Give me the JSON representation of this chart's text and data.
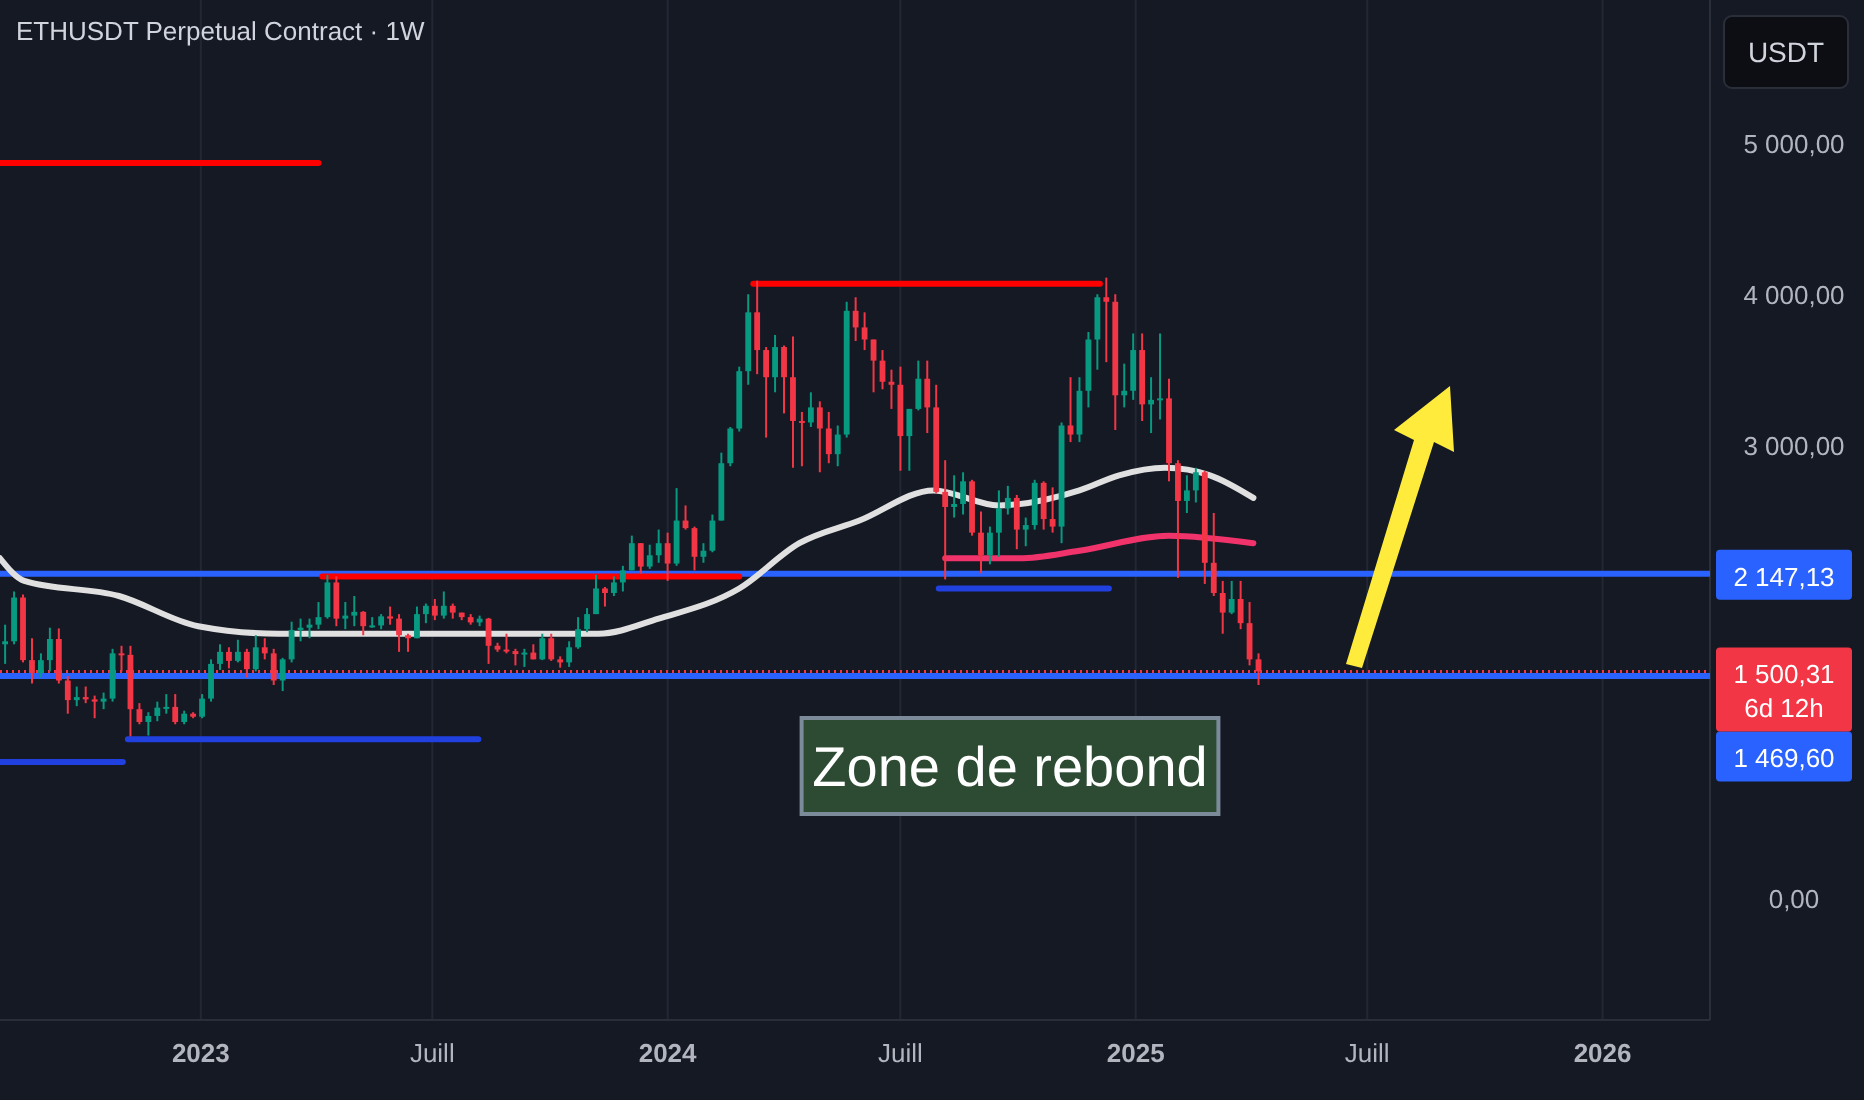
{
  "chart_data": {
    "type": "candlestick",
    "title": "ETHUSDT Perpetual Contract · 1W",
    "ylabel": "USDT",
    "xlim": [
      "2022-07-28",
      "2026-03-26"
    ],
    "ylim": [
      -810,
      5950
    ],
    "xticks": [
      {
        "value": "2023-01-01",
        "label": "2023"
      },
      {
        "value": "2023-07-01",
        "label": "Juill"
      },
      {
        "value": "2024-01-01",
        "label": "2024"
      },
      {
        "value": "2024-07-01",
        "label": "Juill"
      },
      {
        "value": "2025-01-01",
        "label": "2025"
      },
      {
        "value": "2025-07-01",
        "label": "Juill"
      },
      {
        "value": "2026-01-01",
        "label": "2026"
      }
    ],
    "yticks": [
      {
        "value": 0,
        "label": "0,00"
      },
      {
        "value": 3000,
        "label": "3 000,00"
      },
      {
        "value": 4000,
        "label": "4 000,00"
      },
      {
        "value": 5000,
        "label": "5 000,00"
      }
    ],
    "grid": "x",
    "x": [
      "2022-08-01",
      "2022-08-08",
      "2022-08-15",
      "2022-08-22",
      "2022-08-29",
      "2022-09-05",
      "2022-09-12",
      "2022-09-19",
      "2022-09-26",
      "2022-10-03",
      "2022-10-10",
      "2022-10-17",
      "2022-10-24",
      "2022-10-31",
      "2022-11-07",
      "2022-11-14",
      "2022-11-21",
      "2022-11-28",
      "2022-12-05",
      "2022-12-12",
      "2022-12-19",
      "2022-12-26",
      "2023-01-02",
      "2023-01-09",
      "2023-01-16",
      "2023-01-23",
      "2023-01-30",
      "2023-02-06",
      "2023-02-13",
      "2023-02-20",
      "2023-02-27",
      "2023-03-06",
      "2023-03-13",
      "2023-03-20",
      "2023-03-27",
      "2023-04-03",
      "2023-04-10",
      "2023-04-17",
      "2023-04-24",
      "2023-05-01",
      "2023-05-08",
      "2023-05-15",
      "2023-05-22",
      "2023-05-29",
      "2023-06-05",
      "2023-06-12",
      "2023-06-19",
      "2023-06-26",
      "2023-07-03",
      "2023-07-10",
      "2023-07-17",
      "2023-07-24",
      "2023-07-31",
      "2023-08-07",
      "2023-08-14",
      "2023-08-21",
      "2023-08-28",
      "2023-09-04",
      "2023-09-11",
      "2023-09-18",
      "2023-09-25",
      "2023-10-02",
      "2023-10-09",
      "2023-10-16",
      "2023-10-23",
      "2023-10-30",
      "2023-11-06",
      "2023-11-13",
      "2023-11-20",
      "2023-11-27",
      "2023-12-04",
      "2023-12-11",
      "2023-12-18",
      "2023-12-25",
      "2024-01-01",
      "2024-01-08",
      "2024-01-15",
      "2024-01-22",
      "2024-01-29",
      "2024-02-05",
      "2024-02-12",
      "2024-02-19",
      "2024-02-26",
      "2024-03-04",
      "2024-03-11",
      "2024-03-18",
      "2024-03-25",
      "2024-04-01",
      "2024-04-08",
      "2024-04-15",
      "2024-04-22",
      "2024-04-29",
      "2024-05-06",
      "2024-05-13",
      "2024-05-20",
      "2024-05-27",
      "2024-06-03",
      "2024-06-10",
      "2024-06-17",
      "2024-06-24",
      "2024-07-01",
      "2024-07-08",
      "2024-07-15",
      "2024-07-22",
      "2024-07-29",
      "2024-08-05",
      "2024-08-12",
      "2024-08-19",
      "2024-08-26",
      "2024-09-02",
      "2024-09-09",
      "2024-09-16",
      "2024-09-23",
      "2024-09-30",
      "2024-10-07",
      "2024-10-14",
      "2024-10-21",
      "2024-10-28",
      "2024-11-04",
      "2024-11-11",
      "2024-11-18",
      "2024-11-25",
      "2024-12-02",
      "2024-12-09",
      "2024-12-16",
      "2024-12-23",
      "2024-12-30",
      "2025-01-06",
      "2025-01-13",
      "2025-01-20",
      "2025-01-27",
      "2025-02-03",
      "2025-02-10",
      "2025-02-17",
      "2025-02-24",
      "2025-03-03",
      "2025-03-10",
      "2025-03-17",
      "2025-03-24",
      "2025-03-31",
      "2025-04-07"
    ],
    "ohlc": [
      [
        1680,
        1810,
        1550,
        1700
      ],
      [
        1700,
        2030,
        1680,
        1990
      ],
      [
        1990,
        2010,
        1560,
        1575
      ],
      [
        1575,
        1720,
        1420,
        1490
      ],
      [
        1490,
        1620,
        1460,
        1575
      ],
      [
        1575,
        1790,
        1500,
        1715
      ],
      [
        1715,
        1785,
        1420,
        1440
      ],
      [
        1440,
        1470,
        1220,
        1310
      ],
      [
        1310,
        1400,
        1270,
        1330
      ],
      [
        1330,
        1400,
        1290,
        1315
      ],
      [
        1315,
        1340,
        1190,
        1300
      ],
      [
        1300,
        1360,
        1250,
        1320
      ],
      [
        1320,
        1650,
        1300,
        1620
      ],
      [
        1620,
        1670,
        1500,
        1610
      ],
      [
        1610,
        1670,
        1070,
        1250
      ],
      [
        1250,
        1290,
        1150,
        1165
      ],
      [
        1165,
        1230,
        1075,
        1205
      ],
      [
        1205,
        1300,
        1170,
        1260
      ],
      [
        1260,
        1350,
        1220,
        1265
      ],
      [
        1265,
        1350,
        1150,
        1165
      ],
      [
        1165,
        1240,
        1150,
        1220
      ],
      [
        1220,
        1230,
        1190,
        1200
      ],
      [
        1200,
        1350,
        1190,
        1320
      ],
      [
        1320,
        1580,
        1300,
        1550
      ],
      [
        1550,
        1680,
        1510,
        1630
      ],
      [
        1630,
        1660,
        1520,
        1570
      ],
      [
        1570,
        1710,
        1560,
        1630
      ],
      [
        1630,
        1650,
        1460,
        1515
      ],
      [
        1515,
        1740,
        1500,
        1660
      ],
      [
        1660,
        1720,
        1580,
        1620
      ],
      [
        1620,
        1650,
        1410,
        1440
      ],
      [
        1440,
        1590,
        1370,
        1580
      ],
      [
        1580,
        1830,
        1560,
        1775
      ],
      [
        1775,
        1850,
        1700,
        1790
      ],
      [
        1790,
        1850,
        1720,
        1810
      ],
      [
        1810,
        1960,
        1780,
        1860
      ],
      [
        1860,
        2140,
        1850,
        2090
      ],
      [
        2090,
        2130,
        1800,
        1850
      ],
      [
        1850,
        1960,
        1780,
        1870
      ],
      [
        1870,
        2000,
        1800,
        1895
      ],
      [
        1895,
        1900,
        1740,
        1800
      ],
      [
        1800,
        1860,
        1790,
        1805
      ],
      [
        1805,
        1880,
        1780,
        1865
      ],
      [
        1865,
        1930,
        1810,
        1850
      ],
      [
        1850,
        1880,
        1630,
        1740
      ],
      [
        1740,
        1750,
        1630,
        1720
      ],
      [
        1720,
        1930,
        1720,
        1880
      ],
      [
        1880,
        1950,
        1820,
        1935
      ],
      [
        1935,
        1980,
        1840,
        1870
      ],
      [
        1870,
        2030,
        1850,
        1935
      ],
      [
        1935,
        1950,
        1850,
        1890
      ],
      [
        1890,
        1890,
        1840,
        1860
      ],
      [
        1860,
        1880,
        1810,
        1825
      ],
      [
        1825,
        1870,
        1800,
        1850
      ],
      [
        1850,
        1855,
        1550,
        1670
      ],
      [
        1670,
        1690,
        1630,
        1645
      ],
      [
        1645,
        1750,
        1620,
        1635
      ],
      [
        1635,
        1650,
        1540,
        1615
      ],
      [
        1615,
        1650,
        1530,
        1625
      ],
      [
        1625,
        1680,
        1580,
        1580
      ],
      [
        1580,
        1750,
        1575,
        1720
      ],
      [
        1720,
        1750,
        1570,
        1580
      ],
      [
        1580,
        1600,
        1525,
        1560
      ],
      [
        1560,
        1700,
        1530,
        1660
      ],
      [
        1660,
        1860,
        1650,
        1780
      ],
      [
        1780,
        1920,
        1760,
        1880
      ],
      [
        1880,
        2140,
        1880,
        2050
      ],
      [
        2050,
        2060,
        1930,
        2020
      ],
      [
        2020,
        2130,
        2000,
        2090
      ],
      [
        2090,
        2200,
        2030,
        2170
      ],
      [
        2170,
        2400,
        2170,
        2350
      ],
      [
        2350,
        2350,
        2150,
        2195
      ],
      [
        2195,
        2340,
        2180,
        2270
      ],
      [
        2270,
        2440,
        2220,
        2350
      ],
      [
        2350,
        2420,
        2100,
        2215
      ],
      [
        2215,
        2715,
        2200,
        2500
      ],
      [
        2500,
        2600,
        2440,
        2450
      ],
      [
        2450,
        2460,
        2170,
        2260
      ],
      [
        2260,
        2350,
        2220,
        2300
      ],
      [
        2300,
        2540,
        2290,
        2500
      ],
      [
        2500,
        2950,
        2500,
        2880
      ],
      [
        2880,
        3120,
        2860,
        3110
      ],
      [
        3110,
        3520,
        3090,
        3490
      ],
      [
        3490,
        4000,
        3400,
        3880
      ],
      [
        3880,
        4090,
        3470,
        3630
      ],
      [
        3630,
        3650,
        3050,
        3450
      ],
      [
        3450,
        3730,
        3350,
        3650
      ],
      [
        3650,
        3660,
        3210,
        3450
      ],
      [
        3450,
        3720,
        2850,
        3160
      ],
      [
        3160,
        3220,
        2860,
        3150
      ],
      [
        3150,
        3350,
        3120,
        3250
      ],
      [
        3250,
        3290,
        2820,
        3110
      ],
      [
        3110,
        3220,
        2880,
        2940
      ],
      [
        2940,
        3130,
        2860,
        3070
      ],
      [
        3070,
        3950,
        3050,
        3890
      ],
      [
        3890,
        3980,
        3690,
        3780
      ],
      [
        3780,
        3880,
        3630,
        3700
      ],
      [
        3700,
        3700,
        3350,
        3560
      ],
      [
        3560,
        3630,
        3370,
        3420
      ],
      [
        3420,
        3500,
        3240,
        3400
      ],
      [
        3400,
        3520,
        2830,
        3060
      ],
      [
        3060,
        3240,
        2830,
        3240
      ],
      [
        3240,
        3560,
        3230,
        3440
      ],
      [
        3440,
        3560,
        3080,
        3250
      ],
      [
        3250,
        3400,
        2680,
        2690
      ],
      [
        2690,
        2900,
        2110,
        2590
      ],
      [
        2590,
        2800,
        2520,
        2610
      ],
      [
        2610,
        2820,
        2540,
        2760
      ],
      [
        2760,
        2770,
        2400,
        2420
      ],
      [
        2420,
        2560,
        2150,
        2270
      ],
      [
        2270,
        2460,
        2210,
        2420
      ],
      [
        2420,
        2700,
        2260,
        2580
      ],
      [
        2580,
        2730,
        2540,
        2650
      ],
      [
        2650,
        2670,
        2310,
        2440
      ],
      [
        2440,
        2520,
        2330,
        2470
      ],
      [
        2470,
        2770,
        2440,
        2750
      ],
      [
        2750,
        2760,
        2440,
        2510
      ],
      [
        2510,
        2720,
        2420,
        2460
      ],
      [
        2460,
        3150,
        2350,
        3130
      ],
      [
        3130,
        3450,
        3020,
        3070
      ],
      [
        3070,
        3450,
        3020,
        3360
      ],
      [
        3360,
        3750,
        3250,
        3700
      ],
      [
        3700,
        4000,
        3500,
        3980
      ],
      [
        3980,
        4110,
        3550,
        3950
      ],
      [
        3950,
        4000,
        3100,
        3330
      ],
      [
        3330,
        3540,
        3250,
        3360
      ],
      [
        3360,
        3740,
        3300,
        3630
      ],
      [
        3630,
        3740,
        3160,
        3270
      ],
      [
        3270,
        3450,
        3080,
        3300
      ],
      [
        3300,
        3740,
        3170,
        3310
      ],
      [
        3310,
        3440,
        2760,
        2880
      ],
      [
        2880,
        2900,
        2120,
        2630
      ],
      [
        2630,
        2800,
        2550,
        2700
      ],
      [
        2700,
        2850,
        2620,
        2820
      ],
      [
        2820,
        2830,
        2080,
        2220
      ],
      [
        2220,
        2550,
        2000,
        2020
      ],
      [
        2020,
        2100,
        1750,
        1890
      ],
      [
        1890,
        2100,
        1880,
        1980
      ],
      [
        1980,
        2100,
        1780,
        1820
      ],
      [
        1820,
        1960,
        1540,
        1580
      ],
      [
        1580,
        1620,
        1410,
        1500.31
      ]
    ],
    "series": [
      {
        "type": "line",
        "color": "#e0e0e0",
        "x": [
          "2022-07-28",
          "2022-08-16",
          "2022-10-29",
          "2022-12-30",
          "2023-03-03",
          "2023-06-05",
          "2023-09-07",
          "2023-11-08",
          "2023-12-25",
          "2024-02-26",
          "2024-04-13",
          "2024-05-30",
          "2024-07-27",
          "2024-09-16",
          "2024-11-18",
          "2024-12-19",
          "2025-01-24",
          "2025-02-28",
          "2025-04-03"
        ],
        "values": [
          2250,
          2100,
          2000,
          1800,
          1750,
          1750,
          1750,
          1750,
          1850,
          2050,
          2350,
          2500,
          2700,
          2600,
          2700,
          2800,
          2850,
          2800,
          2650
        ]
      },
      {
        "type": "line",
        "color": "#f0336b",
        "x": [
          "2024-08-05",
          "2024-10-02",
          "2024-11-18",
          "2025-01-27",
          "2025-04-03"
        ],
        "values": [
          2250,
          2250,
          2300,
          2400,
          2350
        ]
      },
      {
        "type": "line",
        "color": "#ff0000",
        "x": [
          "2022-07-28",
          "2023-04-03"
        ],
        "values": [
          4870,
          4870
        ]
      },
      {
        "type": "line",
        "color": "#ff0000",
        "x": [
          "2023-04-06",
          "2024-02-26"
        ],
        "values": [
          2130,
          2130
        ]
      },
      {
        "type": "line",
        "color": "#ff0000",
        "x": [
          "2024-03-08",
          "2024-12-04"
        ],
        "values": [
          4070,
          4070
        ]
      },
      {
        "type": "line",
        "color": "#2040e0",
        "x": [
          "2022-07-28",
          "2022-11-01"
        ],
        "values": [
          900,
          900
        ]
      },
      {
        "type": "line",
        "color": "#2040e0",
        "x": [
          "2022-11-05",
          "2023-08-06"
        ],
        "values": [
          1050,
          1050
        ]
      },
      {
        "type": "line",
        "color": "#2040e0",
        "x": [
          "2024-07-31",
          "2024-12-11"
        ],
        "values": [
          2050,
          2050
        ]
      }
    ],
    "ref_lines": [
      {
        "axis": "y",
        "value": 2147.13,
        "label": "2 147,13",
        "color": "#2962ff",
        "line_style": "solid"
      },
      {
        "axis": "y",
        "value": 1469.6,
        "label": "1 469,60",
        "color": "#2962ff",
        "line_style": "solid"
      },
      {
        "axis": "y",
        "value": 1500.31,
        "label": "1 500,31\n6d 12h",
        "color": "#f23645",
        "line_style": "dotted"
      }
    ],
    "annotations": [
      "Zone de rebond"
    ]
  }
}
